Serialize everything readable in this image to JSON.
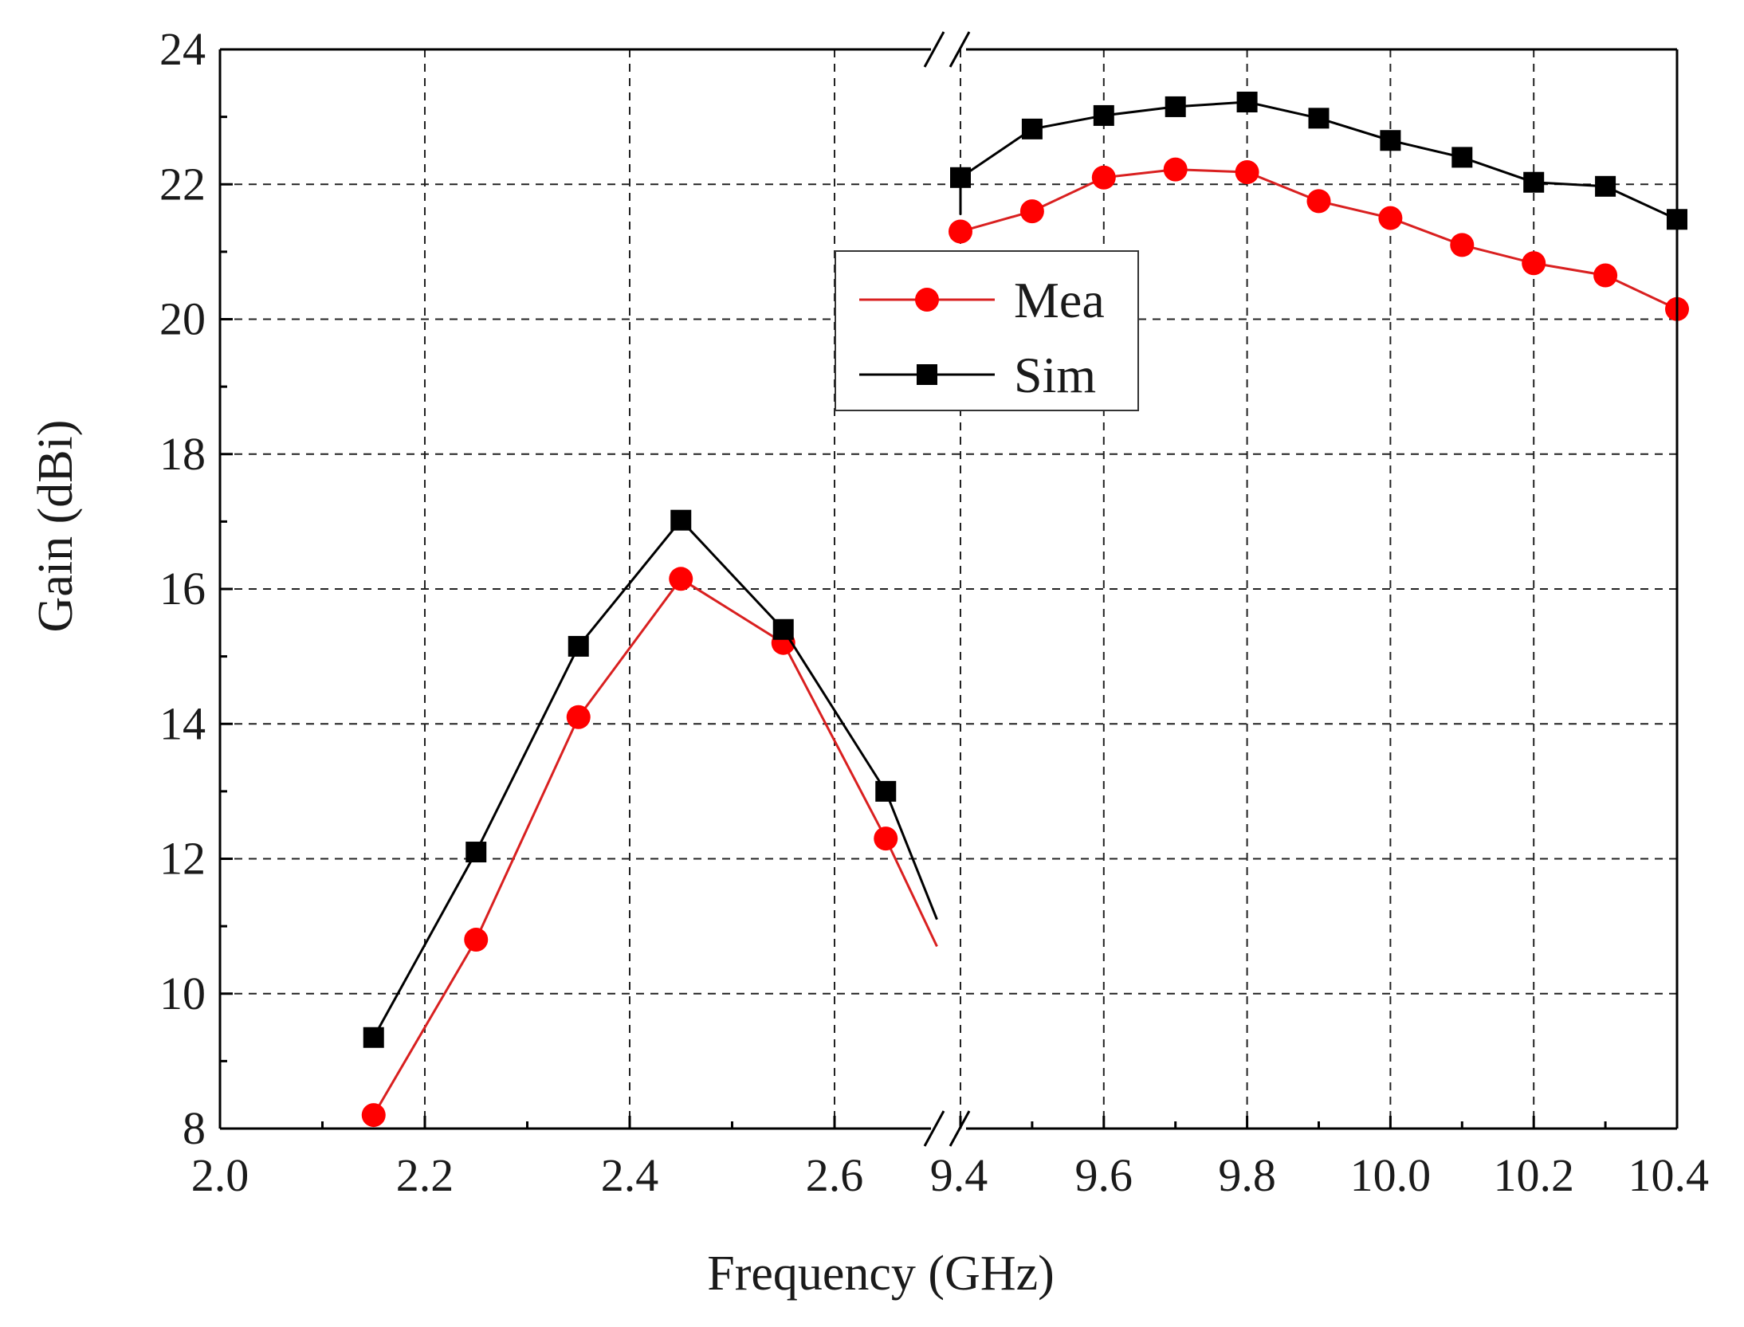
{
  "chart_data": {
    "type": "line",
    "title": "",
    "xlabel": "Frequency (GHz)",
    "ylabel": "Gain (dBi)",
    "ylim": [
      8,
      24
    ],
    "yticks": [
      "8",
      "10",
      "12",
      "14",
      "16",
      "18",
      "20",
      "22",
      "24"
    ],
    "grid": true,
    "axis_break": true,
    "segments": [
      {
        "name": "low-band",
        "xlim": [
          2.0,
          2.7
        ],
        "xticks": [
          "2.0",
          "2.2",
          "2.4",
          "2.6"
        ]
      },
      {
        "name": "high-band",
        "xlim": [
          9.4,
          10.4
        ],
        "xticks": [
          "9.4",
          "9.6",
          "9.8",
          "10.0",
          "10.2",
          "10.4"
        ]
      }
    ],
    "legend": {
      "position": "upper-center",
      "entries": [
        "Mea",
        "Sim"
      ]
    },
    "series": [
      {
        "name": "Mea",
        "color": "#ff0000",
        "line_color": "#d92020",
        "marker": "circle",
        "low_band": {
          "x": [
            2.15,
            2.25,
            2.35,
            2.45,
            2.55,
            2.65
          ],
          "y": [
            8.2,
            10.8,
            14.1,
            16.15,
            15.2,
            12.3
          ],
          "line_end": {
            "x": 2.7,
            "y": 10.7
          }
        },
        "high_band": {
          "line_start": {
            "x": 9.4,
            "y": 21.2
          },
          "x": [
            9.4,
            9.5,
            9.6,
            9.7,
            9.8,
            9.9,
            10.0,
            10.1,
            10.2,
            10.3,
            10.4
          ],
          "y": [
            21.3,
            21.6,
            22.1,
            22.22,
            22.18,
            21.75,
            21.5,
            21.1,
            20.83,
            20.65,
            20.15
          ]
        }
      },
      {
        "name": "Sim",
        "color": "#000000",
        "line_color": "#000000",
        "marker": "square",
        "low_band": {
          "x": [
            2.15,
            2.25,
            2.35,
            2.45,
            2.55,
            2.65
          ],
          "y": [
            9.35,
            12.1,
            15.15,
            17.02,
            15.4,
            13.0
          ],
          "line_end": {
            "x": 2.7,
            "y": 11.1
          }
        },
        "high_band": {
          "line_start": {
            "x": 9.4,
            "y": 21.55
          },
          "x": [
            9.4,
            9.5,
            9.6,
            9.7,
            9.8,
            9.9,
            10.0,
            10.1,
            10.2,
            10.3,
            10.4
          ],
          "y": [
            22.1,
            22.82,
            23.02,
            23.15,
            23.22,
            22.98,
            22.65,
            22.4,
            22.03,
            21.97,
            21.48
          ]
        }
      }
    ]
  }
}
